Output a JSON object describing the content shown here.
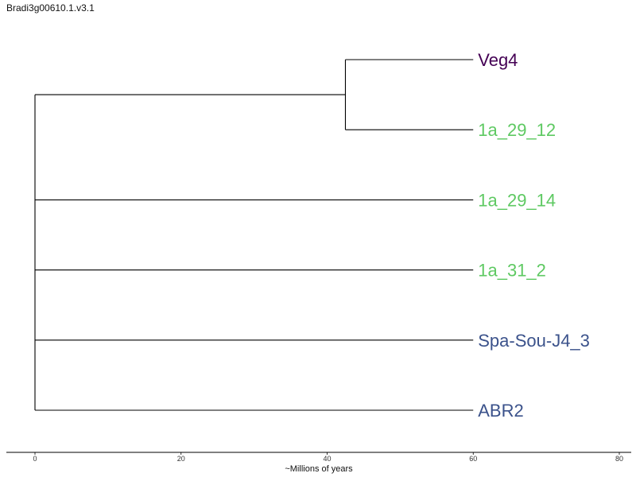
{
  "chart_data": {
    "type": "tree",
    "title": "Bradi3g00610.1.v3.1",
    "xlabel": "~Millions of years",
    "xlim": [
      0,
      80
    ],
    "x_ticks": [
      0,
      20,
      40,
      60,
      80
    ],
    "tips": [
      {
        "label": "Veg4",
        "color": "#440154"
      },
      {
        "label": "1a_29_12",
        "color": "#5ec962"
      },
      {
        "label": "1a_29_14",
        "color": "#5ec962"
      },
      {
        "label": "1a_31_2",
        "color": "#5ec962"
      },
      {
        "label": "Spa-Sou-J4_3",
        "color": "#3b528b"
      },
      {
        "label": "ABR2",
        "color": "#3b528b"
      }
    ],
    "tip_depth": 60,
    "nodes": [
      {
        "id": "root",
        "depth": 0,
        "children": [
          "n1",
          "t2",
          "t3",
          "t4",
          "t5"
        ]
      },
      {
        "id": "n1",
        "depth": 42.5,
        "children": [
          "t0",
          "t1"
        ]
      }
    ],
    "grid": false
  }
}
